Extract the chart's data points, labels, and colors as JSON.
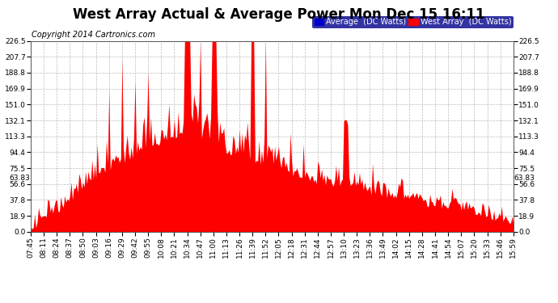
{
  "title": "West Array Actual & Average Power Mon Dec 15 16:11",
  "copyright": "Copyright 2014 Cartronics.com",
  "legend_avg": "Average  (DC Watts)",
  "legend_west": "West Array  (DC Watts)",
  "avg_value": 63.83,
  "y_ticks": [
    0.0,
    18.9,
    37.8,
    56.6,
    75.5,
    94.4,
    113.3,
    132.1,
    151.0,
    169.9,
    188.8,
    207.7,
    226.5
  ],
  "fill_color": "#FF0000",
  "avg_line_color": "#0000FF",
  "bg_color": "#FFFFFF",
  "grid_color": "#AAAAAA",
  "x_labels": [
    "07:45",
    "08:11",
    "08:24",
    "08:37",
    "08:50",
    "09:03",
    "09:16",
    "09:29",
    "09:42",
    "09:55",
    "10:08",
    "10:21",
    "10:34",
    "10:47",
    "11:00",
    "11:13",
    "11:26",
    "11:39",
    "11:52",
    "12:05",
    "12:18",
    "12:31",
    "12:44",
    "12:57",
    "13:10",
    "13:23",
    "13:36",
    "13:49",
    "14:02",
    "14:15",
    "14:28",
    "14:41",
    "14:54",
    "15:07",
    "15:20",
    "15:33",
    "15:46",
    "15:59"
  ],
  "y_max": 226.5,
  "y_min": 0.0,
  "title_fontsize": 12,
  "copyright_fontsize": 7,
  "tick_fontsize": 6.5,
  "legend_fontsize": 7
}
